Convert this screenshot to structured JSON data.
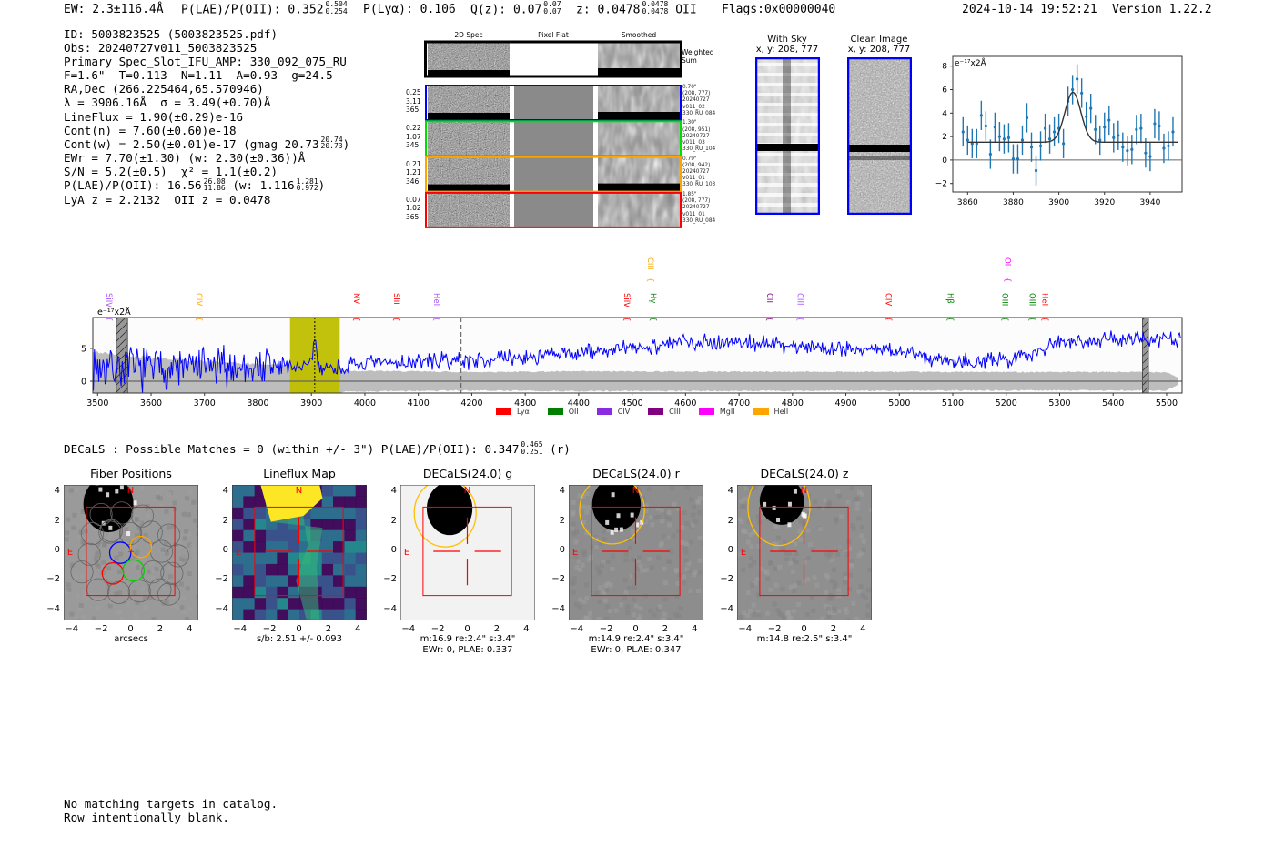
{
  "header": {
    "ew": "EW: 2.3±116.4Å",
    "plae_label": "P(LAE)/P(OII): 0.352",
    "plae_hi": "0.504",
    "plae_lo": "0.254",
    "plya": "P(Lyα): 0.106",
    "qz_label": "Q(z): 0.07",
    "qz_hi": "0.07",
    "qz_lo": "0.07",
    "z_label": "z: 0.0478",
    "z_hi": "0.0478",
    "z_lo": "0.0478",
    "z_line": "OII",
    "flags": "Flags:0x00000040",
    "timestamp": "2024-10-14 19:52:21",
    "version": "Version 1.22.2"
  },
  "info": {
    "lines": [
      {
        "text": "ID: 5003823525 (5003823525.pdf)"
      },
      {
        "text": "Obs: 20240727v011_5003823525"
      },
      {
        "text": "Primary Spec_Slot_IFU_AMP: 330_092_075_RU"
      },
      {
        "text": "F=1.6\"  T=0.113  N=1.11  A=0.93  g=24.5"
      },
      {
        "text": "RA,Dec (266.225464,65.570946)"
      },
      {
        "text": "λ = 3906.16Å  σ = 3.49(±0.70)Å"
      },
      {
        "text": "LineFlux = 1.90(±0.29)e-16"
      },
      {
        "text": "Cont(n) = 7.60(±0.60)e-18"
      },
      {
        "text": "Cont(w) = 2.50(±0.01)e-17 (gmag 20.73",
        "hi": "20.74",
        "lo": "20.73",
        "tail": ")"
      },
      {
        "text": "EWr = 7.70(±1.30) (w: 2.30(±0.36))Å"
      },
      {
        "text": "S/N = 5.2(±0.5)  χ² = 1.1(±0.2)"
      },
      {
        "text": "P(LAE)/P(OII): 16.56",
        "hi": "26.08",
        "lo": "11.86",
        "tail": " (w: 1.116",
        "hi2": "1.281",
        "lo2": "0.972",
        "tail2": ")"
      },
      {
        "text": "LyA z = 2.2132  OII z = 0.0478"
      }
    ]
  },
  "spec2d": {
    "columns": [
      "2D Spec",
      "Pixel Flat",
      "Smoothed"
    ],
    "weighted_label": "Weighted Sum",
    "rows": [
      {
        "color": "#0000ff",
        "stats": [
          "0.25",
          "3.11",
          "365"
        ],
        "meta": [
          "0.70\"",
          "(208, 777)",
          "20240727",
          "v011_02",
          "330_RU_084"
        ]
      },
      {
        "color": "#00e000",
        "stats": [
          "0.22",
          "1.07",
          "345"
        ],
        "meta": [
          "1.30\"",
          "(208, 951)",
          "20240727",
          "v011_03",
          "330_RU_104"
        ]
      },
      {
        "color": "#ffa500",
        "stats": [
          "0.21",
          "1.21",
          "346"
        ],
        "meta": [
          "0.79\"",
          "(208, 942)",
          "20240727",
          "v011_01",
          "330_RU_103"
        ]
      },
      {
        "color": "#ff0000",
        "stats": [
          "0.07",
          "1.02",
          "365"
        ],
        "meta": [
          "1.85\"",
          "(208, 777)",
          "20240727",
          "v011_01",
          "330_RU_084"
        ]
      }
    ]
  },
  "ccd": {
    "with_sky_title": "With Sky",
    "with_sky_xy": "x, y: 208, 777",
    "clean_title": "Clean Image",
    "clean_xy": "x, y: 208, 777"
  },
  "chart_data": [
    {
      "type": "line",
      "title": "",
      "ylabel": "e⁻¹⁷x2Å",
      "xlabel": "",
      "xlim": [
        3491,
        5529
      ],
      "ylim": [
        -1.8,
        9.7
      ],
      "xticks": [
        "3500",
        "3600",
        "3700",
        "3800",
        "3900",
        "4000",
        "4100",
        "4200",
        "4300",
        "4400",
        "4500",
        "4600",
        "4700",
        "4800",
        "4900",
        "5000",
        "5100",
        "5200",
        "5300",
        "5400",
        "5500"
      ],
      "yticks": [
        "0",
        "5"
      ],
      "flux_trend": {
        "x": [
          3500,
          3600,
          3700,
          3800,
          3850,
          3950,
          4000,
          4100,
          4200,
          4300,
          4400,
          4500,
          4600,
          4700,
          4800,
          4900,
          5000,
          5050,
          5100,
          5150,
          5200,
          5250,
          5300,
          5400,
          5500,
          5529
        ],
        "y": [
          2.2,
          2.0,
          2.0,
          2.2,
          2.3,
          2.0,
          2.6,
          3.0,
          3.2,
          3.6,
          4.3,
          5.0,
          6.0,
          6.0,
          5.4,
          5.0,
          4.6,
          3.6,
          3.3,
          3.0,
          3.2,
          4.4,
          6.1,
          6.4,
          6.3,
          6.2
        ]
      },
      "error_band": {
        "x": [
          3500,
          3600,
          3700,
          3800,
          3950,
          3960,
          4200,
          4400,
          5200,
          5500,
          5520
        ],
        "y": [
          4.4,
          3.6,
          3.0,
          2.6,
          2.3,
          1.6,
          1.4,
          1.5,
          1.4,
          1.4,
          0.6
        ]
      },
      "emission_peak": {
        "center": 3906.16,
        "sigma": 3.49,
        "amplitude": 4.2
      },
      "highlight_range": [
        3860,
        3953
      ],
      "line_center": 3906.16,
      "dashed_marker": 4180,
      "masked_ranges": [
        [
          3535,
          3556
        ],
        [
          5455,
          5466
        ]
      ],
      "line_labels": [
        {
          "name": "SiIV",
          "wave": 3522,
          "color": "#a855f7",
          "row": 1
        },
        {
          "name": "CIV",
          "wave": 3690,
          "color": "#ffa500",
          "row": 1
        },
        {
          "name": "NV",
          "wave": 3985,
          "color": "#ff0000",
          "row": 1
        },
        {
          "name": "SiII",
          "wave": 4060,
          "color": "#ff0000",
          "row": 1
        },
        {
          "name": "HeII",
          "wave": 4135,
          "color": "#a855f7",
          "row": 1
        },
        {
          "name": "SiIV",
          "wave": 4490,
          "color": "#ff0000",
          "row": 1
        },
        {
          "name": "CIII",
          "wave": 4535,
          "color": "#ffa500",
          "row": 0
        },
        {
          "name": "Hγ",
          "wave": 4540,
          "color": "#008000",
          "row": 1
        },
        {
          "name": "CII",
          "wave": 4758,
          "color": "#800080",
          "row": 1
        },
        {
          "name": "CIII",
          "wave": 4815,
          "color": "#a855f7",
          "row": 1
        },
        {
          "name": "CIV",
          "wave": 4980,
          "color": "#ff0000",
          "row": 1
        },
        {
          "name": "Hβ",
          "wave": 5096,
          "color": "#008000",
          "row": 1
        },
        {
          "name": "OII",
          "wave": 5203,
          "color": "#ff00ff",
          "row": 0
        },
        {
          "name": "OIII",
          "wave": 5198,
          "color": "#008000",
          "row": 1
        },
        {
          "name": "OIII",
          "wave": 5249,
          "color": "#008000",
          "row": 1
        },
        {
          "name": "HeII",
          "wave": 5273,
          "color": "#ff0000",
          "row": 1
        }
      ],
      "legend": [
        {
          "name": "Lyα",
          "color": "#ff0000"
        },
        {
          "name": "OII",
          "color": "#008000"
        },
        {
          "name": "CIV",
          "color": "#8a2be2"
        },
        {
          "name": "CIII",
          "color": "#800080"
        },
        {
          "name": "MgII",
          "color": "#ff00ff"
        },
        {
          "name": "HeII",
          "color": "#ffa500"
        }
      ],
      "legend_position": "bottom-center"
    },
    {
      "type": "scatter",
      "title": "",
      "ylabel": "e⁻¹⁷x2Å",
      "xlim": [
        3853.5,
        3954
      ],
      "ylim": [
        -2.72,
        8.83
      ],
      "xticks": [
        "3860",
        "3880",
        "3900",
        "3920",
        "3940"
      ],
      "yticks": [
        "−2",
        "0",
        "2",
        "4",
        "6",
        "8"
      ],
      "x": [
        3858,
        3860,
        3862,
        3864,
        3866,
        3868,
        3870,
        3872,
        3874,
        3876,
        3878,
        3880,
        3882,
        3884,
        3886,
        3888,
        3890,
        3892,
        3894,
        3896,
        3898,
        3900,
        3902,
        3904,
        3906,
        3908,
        3910,
        3912,
        3914,
        3916,
        3918,
        3920,
        3922,
        3924,
        3926,
        3928,
        3930,
        3932,
        3934,
        3936,
        3938,
        3940,
        3942,
        3944,
        3946,
        3948,
        3950
      ],
      "y": [
        2.4,
        1.7,
        1.4,
        1.4,
        3.8,
        2.9,
        0.5,
        2.8,
        2.0,
        1.8,
        1.9,
        0.1,
        0.1,
        1.7,
        3.6,
        1.1,
        -0.9,
        1.2,
        2.7,
        1.8,
        2.4,
        2.7,
        1.4,
        5.0,
        6.0,
        6.9,
        5.7,
        3.7,
        4.4,
        2.6,
        1.7,
        2.8,
        3.4,
        1.9,
        2.1,
        1.1,
        0.8,
        0.9,
        2.6,
        2.7,
        0.6,
        0.3,
        3.1,
        2.9,
        1.0,
        1.2,
        2.4
      ],
      "yerr": 1.25,
      "fit": {
        "center": 3906.16,
        "sigma": 3.49,
        "continuum": 1.52,
        "amplitude": 4.25,
        "range": [
          3860,
          3952
        ]
      }
    }
  ],
  "decals": {
    "summary": "DECaLS : Possible Matches = 0 (within +/- 3\")  P(LAE)/P(OII): 0.347",
    "summary_hi": "0.465",
    "summary_lo": "0.251",
    "summary_tail": "(r)",
    "ticks": [
      "−4",
      "−2",
      "0",
      "2",
      "4"
    ],
    "north": "N",
    "east": "E",
    "panels": [
      {
        "title": "Fiber Positions",
        "caption": [
          "arcsecs"
        ]
      },
      {
        "title": "Lineflux Map",
        "caption": [
          "s/b: 2.51 +/- 0.093"
        ]
      },
      {
        "title": "DECaLS(24.0) g",
        "caption": [
          "m:16.9  re:2.4\"  s:3.4\"",
          "EWr: 0, PLAE: 0.337"
        ]
      },
      {
        "title": "DECaLS(24.0) r",
        "caption": [
          "m:14.9  re:2.4\"  s:3.4\"",
          "EWr: 0, PLAE: 0.347"
        ]
      },
      {
        "title": "DECaLS(24.0) z",
        "caption": [
          "m:14.8  re:2.5\"  s:3.4\""
        ]
      }
    ]
  },
  "footer": {
    "line1": "No matching targets in catalog.",
    "line2": "Row intentionally blank."
  }
}
